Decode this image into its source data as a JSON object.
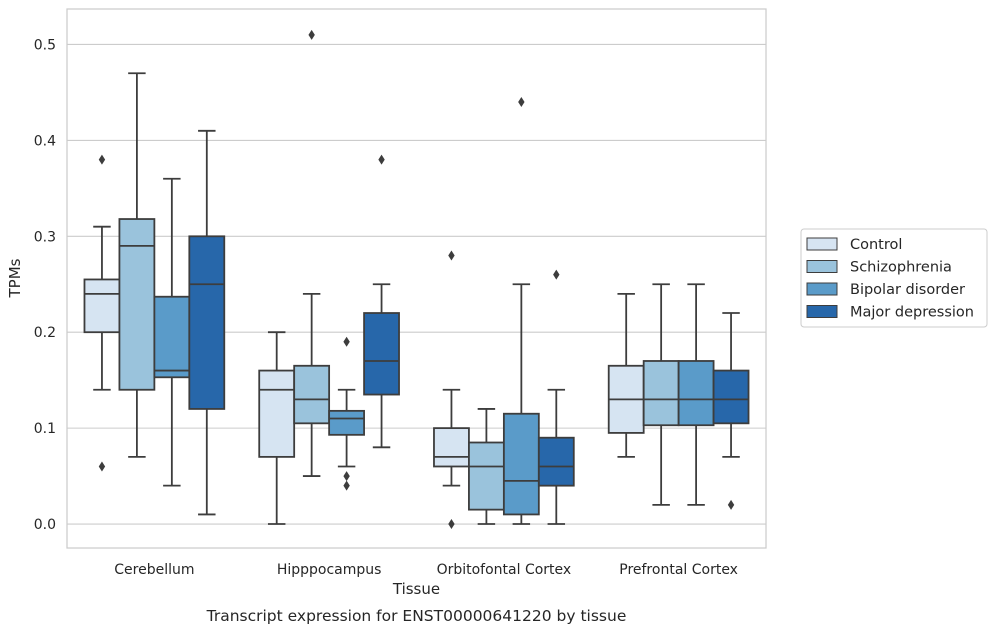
{
  "chart_data": {
    "type": "box",
    "xlabel": "Tissue",
    "ylabel": "TPMs",
    "caption": "Transcript expression for ENST00000641220 by tissue",
    "ylim": [
      -0.025,
      0.537
    ],
    "yticks": [
      0.0,
      0.1,
      0.2,
      0.3,
      0.4,
      0.5
    ],
    "ytick_labels": [
      "0.0",
      "0.1",
      "0.2",
      "0.3",
      "0.4",
      "0.5"
    ],
    "grid": "horizontal",
    "legend_position": "right",
    "categories": [
      "Cerebellum",
      "Hipppocampus",
      "Orbitofontal Cortex",
      "Prefrontal Cortex"
    ],
    "series": [
      {
        "name": "Control",
        "color": "#d6e4f2",
        "boxes": [
          {
            "whislo": 0.14,
            "q1": 0.2,
            "med": 0.24,
            "q3": 0.255,
            "whishi": 0.31,
            "fliers": [
              0.38,
              0.06
            ]
          },
          {
            "whislo": 0.0,
            "q1": 0.07,
            "med": 0.14,
            "q3": 0.16,
            "whishi": 0.2,
            "fliers": []
          },
          {
            "whislo": 0.04,
            "q1": 0.06,
            "med": 0.07,
            "q3": 0.1,
            "whishi": 0.14,
            "fliers": [
              0.28,
              0.0
            ]
          },
          {
            "whislo": 0.07,
            "q1": 0.095,
            "med": 0.13,
            "q3": 0.165,
            "whishi": 0.24,
            "fliers": []
          }
        ]
      },
      {
        "name": "Schizophrenia",
        "color": "#9ac3dc",
        "boxes": [
          {
            "whislo": 0.07,
            "q1": 0.14,
            "med": 0.29,
            "q3": 0.318,
            "whishi": 0.47,
            "fliers": []
          },
          {
            "whislo": 0.05,
            "q1": 0.105,
            "med": 0.13,
            "q3": 0.165,
            "whishi": 0.24,
            "fliers": [
              0.51
            ]
          },
          {
            "whislo": 0.0,
            "q1": 0.015,
            "med": 0.06,
            "q3": 0.085,
            "whishi": 0.12,
            "fliers": []
          },
          {
            "whislo": 0.02,
            "q1": 0.103,
            "med": 0.13,
            "q3": 0.17,
            "whishi": 0.25,
            "fliers": []
          }
        ]
      },
      {
        "name": "Bipolar disorder",
        "color": "#5a9bc9",
        "boxes": [
          {
            "whislo": 0.04,
            "q1": 0.153,
            "med": 0.16,
            "q3": 0.237,
            "whishi": 0.36,
            "fliers": []
          },
          {
            "whislo": 0.06,
            "q1": 0.093,
            "med": 0.11,
            "q3": 0.118,
            "whishi": 0.14,
            "fliers": [
              0.19,
              0.05,
              0.04
            ]
          },
          {
            "whislo": 0.0,
            "q1": 0.01,
            "med": 0.045,
            "q3": 0.115,
            "whishi": 0.25,
            "fliers": [
              0.44
            ]
          },
          {
            "whislo": 0.02,
            "q1": 0.103,
            "med": 0.13,
            "q3": 0.17,
            "whishi": 0.25,
            "fliers": []
          }
        ]
      },
      {
        "name": "Major depression",
        "color": "#2767aa",
        "boxes": [
          {
            "whislo": 0.01,
            "q1": 0.12,
            "med": 0.25,
            "q3": 0.3,
            "whishi": 0.41,
            "fliers": []
          },
          {
            "whislo": 0.08,
            "q1": 0.135,
            "med": 0.17,
            "q3": 0.22,
            "whishi": 0.25,
            "fliers": [
              0.38
            ]
          },
          {
            "whislo": 0.0,
            "q1": 0.04,
            "med": 0.06,
            "q3": 0.09,
            "whishi": 0.14,
            "fliers": [
              0.26
            ]
          },
          {
            "whislo": 0.07,
            "q1": 0.105,
            "med": 0.13,
            "q3": 0.16,
            "whishi": 0.22,
            "fliers": [
              0.02
            ]
          }
        ]
      }
    ]
  }
}
